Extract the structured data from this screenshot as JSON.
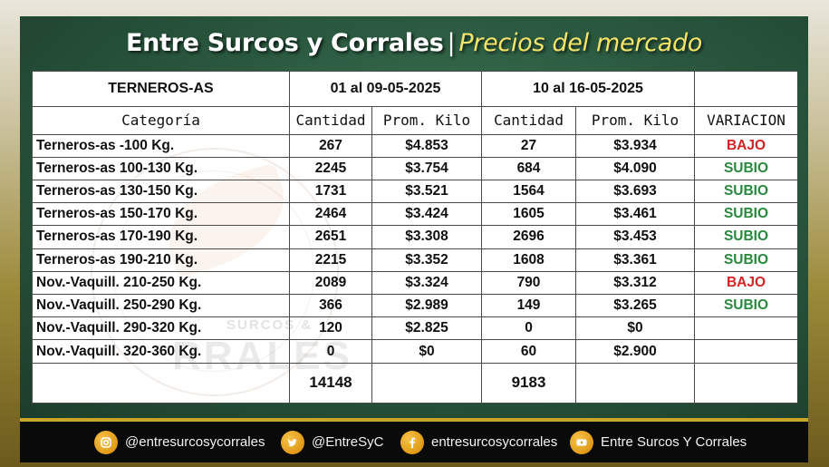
{
  "header": {
    "title_main": "Entre Surcos y Corrales",
    "title_sep": "|",
    "title_sub": "Precios del mercado"
  },
  "table": {
    "section_label": "TERNEROS-AS",
    "period_1": "01 al 09-05-2025",
    "period_2": "10 al 16-05-2025",
    "columns": {
      "categoria": "Categoría",
      "cantidad_1": "Cantidad",
      "prom_1": "Prom. Kilo",
      "cantidad_2": "Cantidad",
      "prom_2": "Prom. Kilo",
      "variacion": "VARIACION"
    },
    "rows": [
      {
        "cat": "Terneros-as -100 Kg.",
        "c1": "267",
        "p1": "$4.853",
        "c2": "27",
        "p2": "$3.934",
        "var": "BAJO"
      },
      {
        "cat": "Terneros-as 100-130 Kg.",
        "c1": "2245",
        "p1": "$3.754",
        "c2": "684",
        "p2": "$4.090",
        "var": "SUBIO"
      },
      {
        "cat": "Terneros-as 130-150 Kg.",
        "c1": "1731",
        "p1": "$3.521",
        "c2": "1564",
        "p2": "$3.693",
        "var": "SUBIO"
      },
      {
        "cat": "Terneros-as 150-170 Kg.",
        "c1": "2464",
        "p1": "$3.424",
        "c2": "1605",
        "p2": "$3.461",
        "var": "SUBIO"
      },
      {
        "cat": "Terneros-as 170-190 Kg.",
        "c1": "2651",
        "p1": "$3.308",
        "c2": "2696",
        "p2": "$3.453",
        "var": "SUBIO"
      },
      {
        "cat": "Terneros-as 190-210 Kg.",
        "c1": "2215",
        "p1": "$3.352",
        "c2": "1608",
        "p2": "$3.361",
        "var": "SUBIO"
      },
      {
        "cat": "Nov.-Vaquill. 210-250 Kg.",
        "c1": "2089",
        "p1": "$3.324",
        "c2": "790",
        "p2": "$3.312",
        "var": "BAJO"
      },
      {
        "cat": "Nov.-Vaquill. 250-290 Kg.",
        "c1": "366",
        "p1": "$2.989",
        "c2": "149",
        "p2": "$3.265",
        "var": "SUBIO"
      },
      {
        "cat": "Nov.-Vaquill. 290-320 Kg.",
        "c1": "120",
        "p1": "$2.825",
        "c2": "0",
        "p2": "$0",
        "var": ""
      },
      {
        "cat": "Nov.-Vaquill. 320-360 Kg.",
        "c1": "0",
        "p1": "$0",
        "c2": "60",
        "p2": "$2.900",
        "var": ""
      }
    ],
    "total_1": "14148",
    "total_2": "9183"
  },
  "watermark": {
    "small": "SURCOS &",
    "big": "RRALES"
  },
  "footer": {
    "instagram": "@entresurcosycorrales",
    "twitter": "@EntreSyC",
    "facebook": "entresurcosycorrales",
    "youtube": "Entre Surcos Y Corrales"
  },
  "colors": {
    "bajo": "#d42323",
    "subio": "#278a3c",
    "total": "#2e8b4a",
    "icon_gold": "#e09a16",
    "frame_green": "#2b5a40"
  },
  "icons": [
    "instagram-icon",
    "twitter-icon",
    "facebook-icon",
    "youtube-icon"
  ]
}
